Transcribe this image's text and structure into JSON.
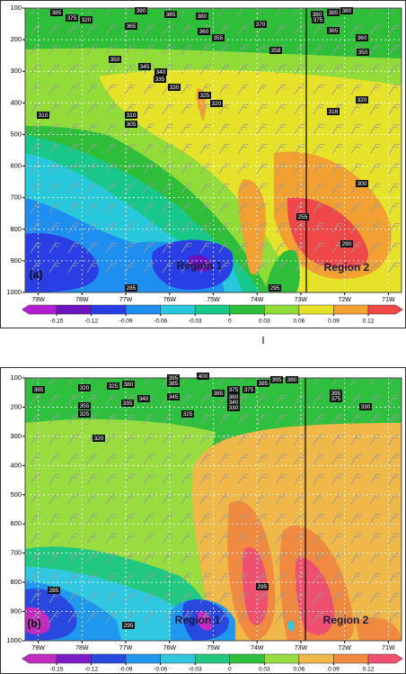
{
  "chart_data": [
    {
      "type": "contour",
      "panel_label": "(a)",
      "annotations": [
        "Region 1",
        "Region 2"
      ],
      "xlim": [
        -79.3,
        -70.7
      ],
      "xticks": [
        {
          "value": -79,
          "label": "79W"
        },
        {
          "value": -78,
          "label": "78W"
        },
        {
          "value": -77,
          "label": "77W"
        },
        {
          "value": -76,
          "label": "76W"
        },
        {
          "value": -75,
          "label": "75W"
        },
        {
          "value": -74,
          "label": "74W"
        },
        {
          "value": -73,
          "label": "73W"
        },
        {
          "value": -72,
          "label": "72W"
        },
        {
          "value": -71,
          "label": "71W"
        }
      ],
      "ylim": [
        100,
        1000
      ],
      "yticks": [
        100,
        200,
        300,
        400,
        500,
        600,
        700,
        800,
        900,
        1000
      ],
      "y_inverted": true,
      "grid": true,
      "colorbar": {
        "ticks": [
          -0.15,
          -0.12,
          -0.09,
          -0.06,
          -0.03,
          0,
          0.03,
          0.06,
          0.09,
          0.12
        ],
        "colors": [
          "#b41ed2",
          "#6a14be",
          "#2a3ee6",
          "#1e8ef0",
          "#28c8dc",
          "#18c88a",
          "#2ebe3a",
          "#92dc3a",
          "#e6e22a",
          "#f2a032",
          "#f04848"
        ]
      },
      "contour_labels": [
        385,
        375,
        320,
        390,
        385,
        365,
        380,
        360,
        355,
        370,
        380,
        375,
        385,
        380,
        365,
        360,
        358,
        350,
        350,
        345,
        340,
        335,
        330,
        325,
        320,
        310,
        310,
        305,
        316,
        320,
        300,
        255,
        290,
        285,
        295
      ]
    },
    {
      "type": "contour",
      "panel_label": "(b)",
      "annotations": [
        "Region 1",
        "Region 2"
      ],
      "xlim": [
        -79.3,
        -70.7
      ],
      "xticks": [
        {
          "value": -79,
          "label": "79W"
        },
        {
          "value": -78,
          "label": "78W"
        },
        {
          "value": -77,
          "label": "77W"
        },
        {
          "value": -76,
          "label": "76W"
        },
        {
          "value": -75,
          "label": "75W"
        },
        {
          "value": -74,
          "label": "74W"
        },
        {
          "value": -73,
          "label": "73W"
        },
        {
          "value": -72,
          "label": "72W"
        },
        {
          "value": -71,
          "label": "71W"
        }
      ],
      "ylim": [
        100,
        1000
      ],
      "yticks": [
        100,
        200,
        300,
        400,
        500,
        600,
        700,
        800,
        900,
        1000
      ],
      "y_inverted": true,
      "grid": true,
      "colorbar": {
        "ticks": [
          -0.15,
          -0.12,
          -0.09,
          -0.06,
          -0.03,
          0,
          0.03,
          0.06,
          0.09,
          0.12
        ],
        "colors": [
          "#c02cc0",
          "#7a1cc8",
          "#2848e0",
          "#2098f0",
          "#30c8e0",
          "#20c880",
          "#30c040",
          "#98dc40",
          "#f0b848",
          "#f08a40",
          "#f05070"
        ]
      },
      "contour_labels": [
        385,
        320,
        325,
        380,
        395,
        385,
        400,
        345,
        340,
        335,
        355,
        325,
        385,
        375,
        360,
        340,
        330,
        375,
        385,
        395,
        380,
        395,
        375,
        330,
        325,
        320,
        285,
        295,
        295
      ]
    }
  ]
}
